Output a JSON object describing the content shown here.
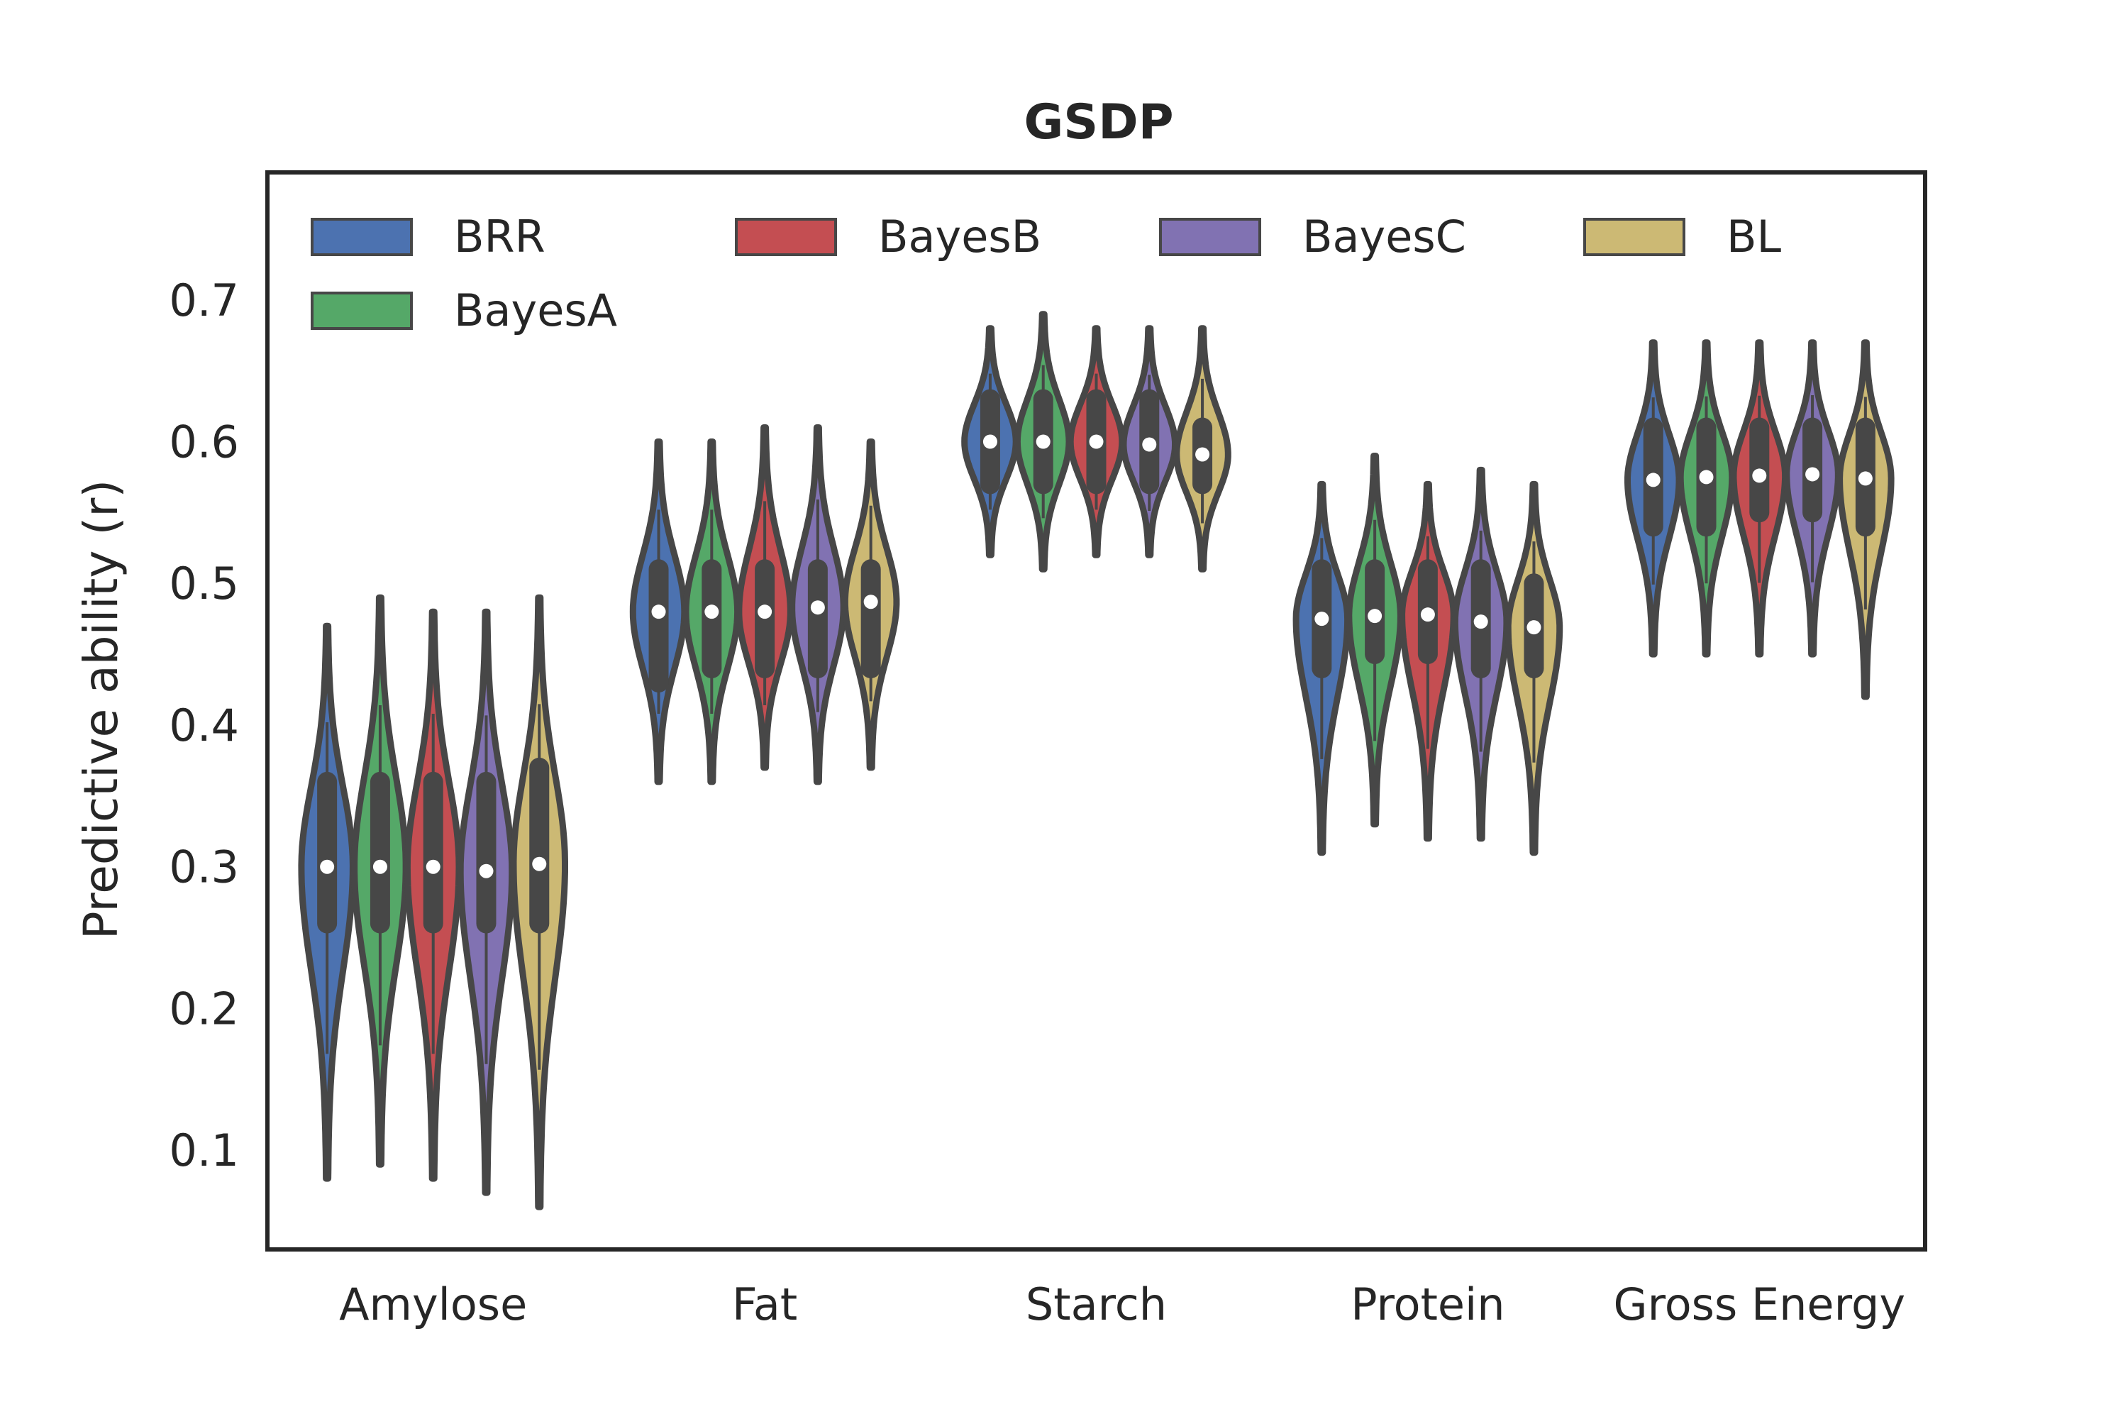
{
  "chart_data": {
    "type": "violin",
    "title": "GSDP",
    "xlabel": "",
    "ylabel": "Predictive ability (r)",
    "categories": [
      "Amylose",
      "Fat",
      "Starch",
      "Protein",
      "Gross Energy"
    ],
    "yticks": [
      "0.1",
      "0.2",
      "0.3",
      "0.4",
      "0.5",
      "0.6",
      "0.7"
    ],
    "ylim": [
      0.03,
      0.79
    ],
    "grid": false,
    "legend_position": "top",
    "series": [
      {
        "name": "BRR",
        "color": "#4c72b0",
        "min": [
          0.08,
          0.36,
          0.52,
          0.31,
          0.45
        ],
        "q1": [
          0.26,
          0.43,
          0.57,
          0.44,
          0.54
        ],
        "median": [
          0.3,
          0.48,
          0.6,
          0.475,
          0.573
        ],
        "q3": [
          0.36,
          0.51,
          0.63,
          0.51,
          0.61
        ],
        "max": [
          0.47,
          0.6,
          0.68,
          0.57,
          0.67
        ]
      },
      {
        "name": "BayesA",
        "color": "#55a868",
        "min": [
          0.09,
          0.36,
          0.51,
          0.33,
          0.45
        ],
        "q1": [
          0.26,
          0.44,
          0.57,
          0.45,
          0.54
        ],
        "median": [
          0.3,
          0.48,
          0.6,
          0.477,
          0.575
        ],
        "q3": [
          0.36,
          0.51,
          0.63,
          0.51,
          0.61
        ],
        "max": [
          0.49,
          0.6,
          0.69,
          0.59,
          0.67
        ]
      },
      {
        "name": "BayesB",
        "color": "#c44e52",
        "min": [
          0.08,
          0.37,
          0.52,
          0.32,
          0.45
        ],
        "q1": [
          0.26,
          0.44,
          0.57,
          0.45,
          0.55
        ],
        "median": [
          0.3,
          0.48,
          0.6,
          0.478,
          0.576
        ],
        "q3": [
          0.36,
          0.51,
          0.63,
          0.51,
          0.61
        ],
        "max": [
          0.48,
          0.61,
          0.68,
          0.57,
          0.67
        ]
      },
      {
        "name": "BayesC",
        "color": "#8172b2",
        "min": [
          0.07,
          0.36,
          0.52,
          0.32,
          0.45
        ],
        "q1": [
          0.26,
          0.44,
          0.57,
          0.44,
          0.55
        ],
        "median": [
          0.297,
          0.483,
          0.598,
          0.473,
          0.577
        ],
        "q3": [
          0.36,
          0.51,
          0.63,
          0.51,
          0.61
        ],
        "max": [
          0.48,
          0.61,
          0.68,
          0.58,
          0.67
        ]
      },
      {
        "name": "BL",
        "color": "#ccb974",
        "min": [
          0.06,
          0.37,
          0.51,
          0.31,
          0.42
        ],
        "q1": [
          0.26,
          0.44,
          0.57,
          0.44,
          0.54
        ],
        "median": [
          0.302,
          0.487,
          0.591,
          0.469,
          0.574
        ],
        "q3": [
          0.37,
          0.51,
          0.61,
          0.5,
          0.61
        ],
        "max": [
          0.49,
          0.6,
          0.68,
          0.57,
          0.67
        ]
      }
    ]
  }
}
